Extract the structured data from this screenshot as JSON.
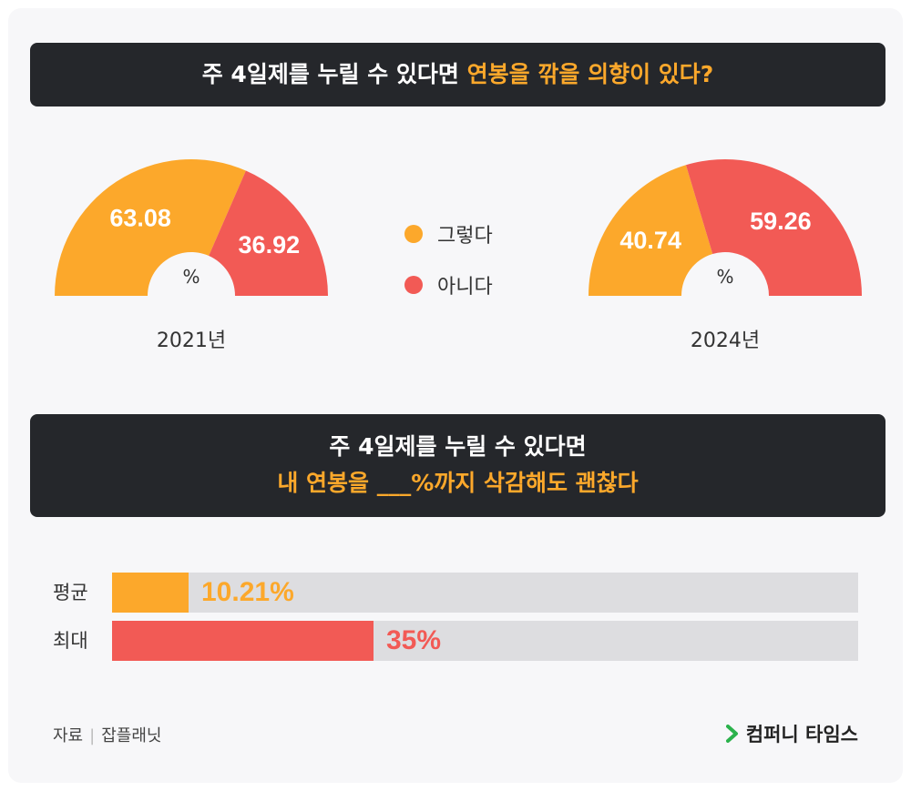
{
  "header1": {
    "title": "주 4일제를 누릴 수 있다면",
    "highlight": "연봉을 깎을 의향이 있다?"
  },
  "legend": [
    {
      "label": "그렇다",
      "color": "#fca82b"
    },
    {
      "label": "아니다",
      "color": "#f25a55"
    }
  ],
  "header2": {
    "line1": "주 4일제를 누릴 수 있다면",
    "line2": "내 연봉을 ___%까지 삭감해도 괜찮다"
  },
  "chart_data": [
    {
      "type": "pie",
      "subtype": "semi-donut",
      "title": "2021년",
      "unit": "%",
      "categories": [
        "그렇다",
        "아니다"
      ],
      "values": [
        63.08,
        36.92
      ],
      "value_labels": [
        "63.08",
        "36.92"
      ],
      "colors": [
        "#fca82b",
        "#f25a55"
      ]
    },
    {
      "type": "pie",
      "subtype": "semi-donut",
      "title": "2024년",
      "unit": "%",
      "categories": [
        "그렇다",
        "아니다"
      ],
      "values": [
        40.74,
        59.26
      ],
      "value_labels": [
        "40.74",
        "59.26"
      ],
      "colors": [
        "#fca82b",
        "#f25a55"
      ]
    },
    {
      "type": "bar",
      "orientation": "horizontal",
      "categories": [
        "평균",
        "최대"
      ],
      "values": [
        10.21,
        35
      ],
      "value_labels": [
        "10.21%",
        "35%"
      ],
      "colors": [
        "#fca82b",
        "#f25a55"
      ],
      "xlim": [
        0,
        100
      ]
    }
  ],
  "footer": {
    "source_label": "자료",
    "source_name": "잡플래닛",
    "brand": "컴퍼니 타임스",
    "brand_color": "#2bb24c"
  }
}
